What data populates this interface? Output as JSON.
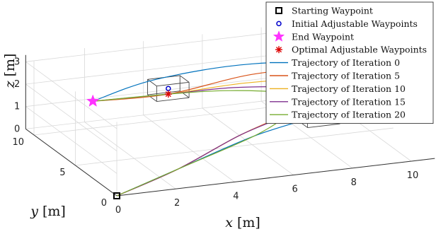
{
  "chart_data": {
    "type": "line",
    "projection": "3d",
    "xlabel": {
      "var": "x",
      "unit": "[m]"
    },
    "ylabel": {
      "var": "y",
      "unit": "[m]"
    },
    "zlabel": {
      "var": "z",
      "unit": "[m]"
    },
    "x_ticks": [
      "0",
      "2",
      "4",
      "6",
      "8",
      "10"
    ],
    "y_ticks": [
      "0",
      "5",
      "10"
    ],
    "z_ticks": [
      "0",
      "1",
      "2",
      "3"
    ],
    "grid": true,
    "legend_position": "top-right",
    "legend": [
      {
        "label": "Starting Waypoint",
        "marker": "square",
        "color": "#000000"
      },
      {
        "label": "Initial Adjustable Waypoints",
        "marker": "circle",
        "color": "#0000cc"
      },
      {
        "label": "End Waypoint",
        "marker": "star",
        "color": "#ff33ff"
      },
      {
        "label": "Optimal Adjustable Waypoints",
        "marker": "asterisk",
        "color": "#dd0000"
      },
      {
        "label": "Trajectory of Iteration 0",
        "marker": "line",
        "color": "#0072bd"
      },
      {
        "label": "Trajectory of Iteration 5",
        "marker": "line",
        "color": "#d95319"
      },
      {
        "label": "Trajectory of Iteration 10",
        "marker": "line",
        "color": "#edb120"
      },
      {
        "label": "Trajectory of Iteration 15",
        "marker": "line",
        "color": "#7e2f8e"
      },
      {
        "label": "Trajectory of Iteration 20",
        "marker": "line",
        "color": "#77ac30"
      }
    ],
    "starting_waypoint": [
      0,
      0,
      0
    ],
    "end_waypoint": [
      2,
      10,
      1.2
    ],
    "initial_adjustable_waypoints": [
      [
        4,
        8,
        2.0
      ],
      [
        8,
        4,
        1.3
      ]
    ],
    "optimal_adjustable_waypoints": [
      [
        4,
        8,
        1.75
      ],
      [
        7,
        4,
        1.5
      ]
    ],
    "series": [
      {
        "name": "Trajectory of Iteration 0",
        "color": "#0072bd",
        "points": [
          [
            0,
            0,
            0
          ],
          [
            2.5,
            1.5,
            0.4
          ],
          [
            5.5,
            3,
            1.0
          ],
          [
            8,
            4,
            1.3
          ],
          [
            10.5,
            4.8,
            2.0
          ],
          [
            10,
            6.5,
            2.55
          ],
          [
            7,
            8.5,
            2.5
          ],
          [
            4,
            9.5,
            2.0
          ],
          [
            2,
            10,
            1.2
          ]
        ]
      },
      {
        "name": "Trajectory of Iteration 5",
        "color": "#d95319",
        "points": [
          [
            0,
            0,
            0
          ],
          [
            2.5,
            1.5,
            0.4
          ],
          [
            5,
            3,
            1.1
          ],
          [
            7,
            4,
            1.5
          ],
          [
            9.5,
            4.7,
            2.1
          ],
          [
            9.5,
            6,
            2.6
          ],
          [
            7,
            8,
            2.2
          ],
          [
            4,
            8,
            1.75
          ],
          [
            2,
            10,
            1.2
          ]
        ]
      },
      {
        "name": "Trajectory of Iteration 10",
        "color": "#edb120",
        "points": [
          [
            0,
            0,
            0
          ],
          [
            2.5,
            1.5,
            0.4
          ],
          [
            5,
            3,
            1.1
          ],
          [
            7,
            4,
            1.5
          ],
          [
            8.7,
            4.8,
            2.0
          ],
          [
            8.5,
            5.8,
            2.3
          ],
          [
            6.5,
            7.5,
            2.0
          ],
          [
            4,
            8,
            1.75
          ],
          [
            2,
            10,
            1.2
          ]
        ]
      },
      {
        "name": "Trajectory of Iteration 15",
        "color": "#7e2f8e",
        "points": [
          [
            0,
            0,
            0
          ],
          [
            2.5,
            1.5,
            0.4
          ],
          [
            5,
            3,
            1.1
          ],
          [
            7,
            4,
            1.5
          ],
          [
            8.0,
            4.8,
            1.9
          ],
          [
            7.8,
            5.6,
            2.1
          ],
          [
            6.0,
            7.2,
            1.95
          ],
          [
            4,
            8,
            1.75
          ],
          [
            2,
            10,
            1.2
          ]
        ]
      },
      {
        "name": "Trajectory of Iteration 20",
        "color": "#77ac30",
        "points": [
          [
            0,
            0,
            0
          ],
          [
            2.5,
            1.5,
            0.4
          ],
          [
            5.5,
            3,
            1.0
          ],
          [
            7,
            4,
            1.5
          ],
          [
            7.6,
            4.8,
            1.75
          ],
          [
            7.4,
            5.5,
            1.95
          ],
          [
            5.8,
            7.0,
            1.9
          ],
          [
            4,
            8,
            1.75
          ],
          [
            2,
            10,
            1.2
          ]
        ]
      }
    ]
  }
}
